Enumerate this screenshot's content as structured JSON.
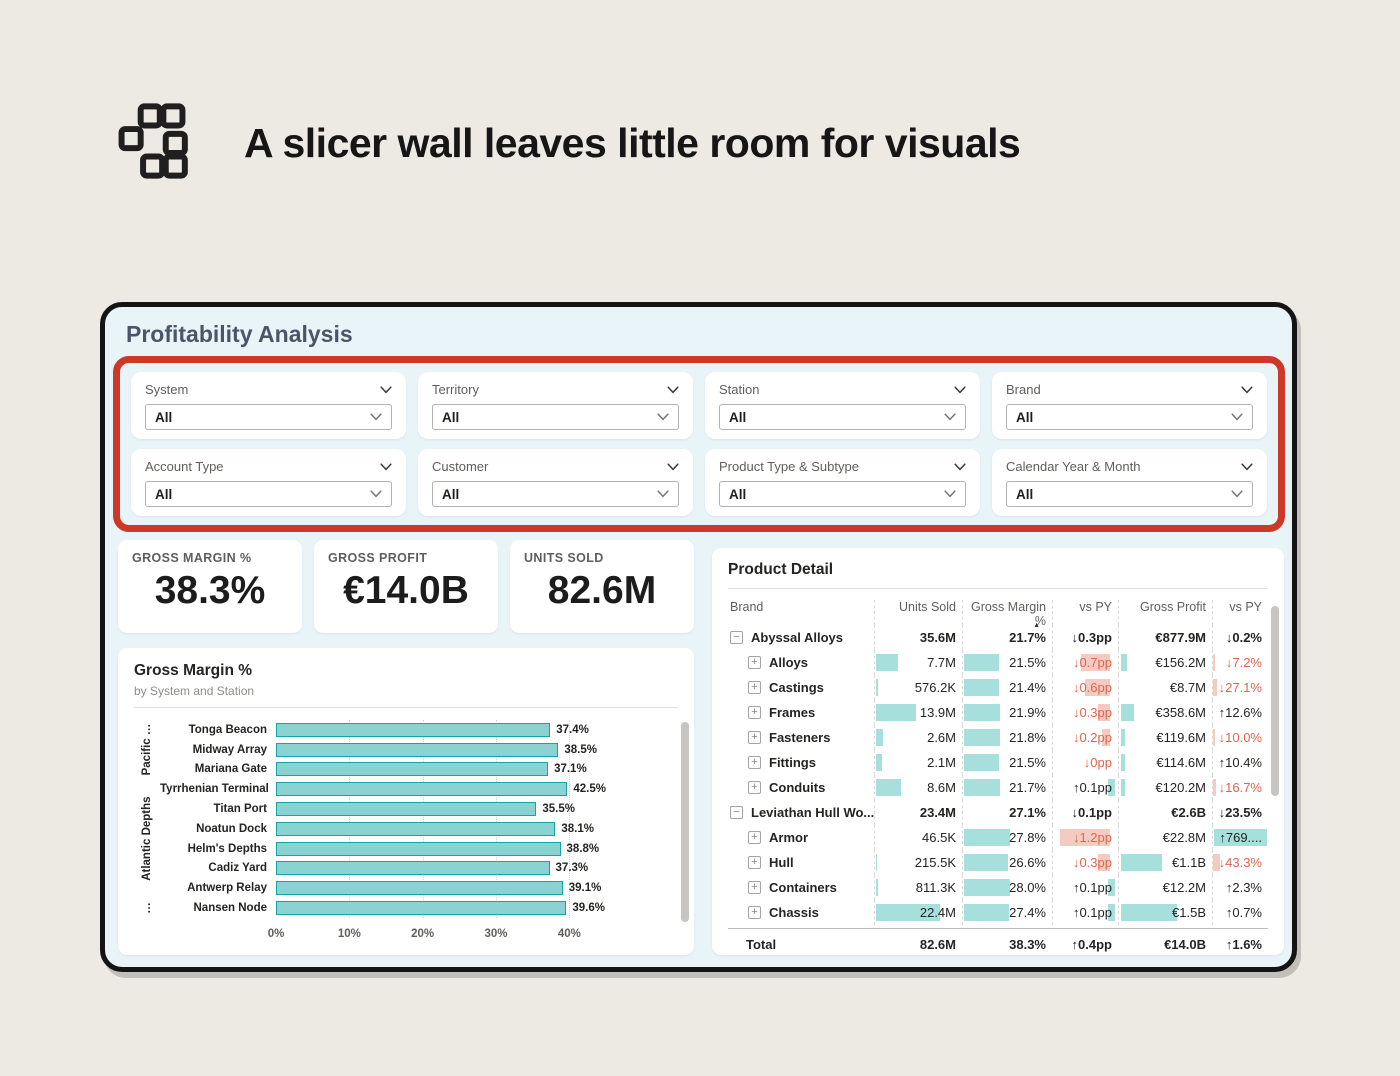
{
  "colors": {
    "page_bg": "#EDE9E3",
    "panel_bg": "#E9F4F9",
    "panel_border": "#141414",
    "red_outline": "#CE3829",
    "bar_fill": "#8BD3D2",
    "bar_stroke": "#16A4A7",
    "tbar_teal": "#A6DFDB",
    "tbar_pink": "#F3CBC1",
    "neg_text": "#E0654A",
    "text_dark": "#252423",
    "text_gray": "#605E5C",
    "title_color": "#4A5568"
  },
  "header": {
    "title": "A slicer wall leaves little room for visuals",
    "icon": "blocks-grid-icon"
  },
  "dashboard": {
    "title": "Profitability Analysis",
    "slicers": [
      {
        "label": "System",
        "value": "All"
      },
      {
        "label": "Territory",
        "value": "All"
      },
      {
        "label": "Station",
        "value": "All"
      },
      {
        "label": "Brand",
        "value": "All"
      },
      {
        "label": "Account Type",
        "value": "All"
      },
      {
        "label": "Customer",
        "value": "All"
      },
      {
        "label": "Product Type & Subtype",
        "value": "All"
      },
      {
        "label": "Calendar Year & Month",
        "value": "All"
      }
    ],
    "kpis": [
      {
        "label": "GROSS MARGIN %",
        "value": "38.3%"
      },
      {
        "label": "GROSS PROFIT",
        "value": "€14.0B"
      },
      {
        "label": "UNITS SOLD",
        "value": "82.6M"
      }
    ],
    "chart_data": {
      "type": "bar",
      "title": "Gross Margin %",
      "subtitle": "by System and Station",
      "categories": [
        "Tonga Beacon",
        "Midway Array",
        "Mariana Gate",
        "Tyrrhenian Terminal",
        "Titan Port",
        "Noatun Dock",
        "Helm's Depths",
        "Cadiz Yard",
        "Antwerp Relay",
        "Nansen Node"
      ],
      "values": [
        37.4,
        38.5,
        37.1,
        42.5,
        35.5,
        38.1,
        38.8,
        37.3,
        39.1,
        39.6
      ],
      "station_groups": [
        {
          "label": "Pacific …",
          "span": 3
        },
        {
          "label": "Atlantic Depths",
          "span": 6
        },
        {
          "label": "…",
          "span": 1
        }
      ],
      "x_ticks": [
        0,
        10,
        20,
        30,
        40
      ],
      "xlim": [
        0,
        45
      ],
      "xlabel": "",
      "ylabel": "",
      "grid": "dotted-vertical"
    },
    "table": {
      "title": "Product Detail",
      "columns": [
        "Brand",
        "Units Sold",
        "Gross Margin %",
        "vs PY",
        "Gross Profit",
        "vs PY"
      ],
      "sort_column_index": 2,
      "rows": [
        {
          "type": "parent",
          "expander": "minus",
          "brand": "Abyssal Alloys",
          "units": "35.6M",
          "units_m": 35.6,
          "gm": "21.7%",
          "gm_v": 21.7,
          "pp": "↓0.3pp",
          "pp_v": -0.3,
          "pp_neg": true,
          "gp": "€877.9M",
          "gp_m": 877.9,
          "vspy": "↓0.2%",
          "vspy_v": -0.2,
          "vspy_neg": true
        },
        {
          "type": "child",
          "expander": "plus",
          "brand": "Alloys",
          "units": "7.7M",
          "units_m": 7.7,
          "gm": "21.5%",
          "gm_v": 21.5,
          "pp": "↓0.7pp",
          "pp_v": -0.7,
          "pp_neg": true,
          "gp": "€156.2M",
          "gp_m": 156.2,
          "vspy": "↓7.2%",
          "vspy_v": -7.2,
          "vspy_neg": true
        },
        {
          "type": "child",
          "expander": "plus",
          "brand": "Castings",
          "units": "576.2K",
          "units_m": 0.5762,
          "gm": "21.4%",
          "gm_v": 21.4,
          "pp": "↓0.6pp",
          "pp_v": -0.6,
          "pp_neg": true,
          "gp": "€8.7M",
          "gp_m": 8.7,
          "vspy": "↓27.1%",
          "vspy_v": -27.1,
          "vspy_neg": true
        },
        {
          "type": "child",
          "expander": "plus",
          "brand": "Frames",
          "units": "13.9M",
          "units_m": 13.9,
          "gm": "21.9%",
          "gm_v": 21.9,
          "pp": "↓0.3pp",
          "pp_v": -0.3,
          "pp_neg": true,
          "gp": "€358.6M",
          "gp_m": 358.6,
          "vspy": "↑12.6%",
          "vspy_v": 12.6,
          "vspy_neg": false
        },
        {
          "type": "child",
          "expander": "plus",
          "brand": "Fasteners",
          "units": "2.6M",
          "units_m": 2.6,
          "gm": "21.8%",
          "gm_v": 21.8,
          "pp": "↓0.2pp",
          "pp_v": -0.2,
          "pp_neg": true,
          "gp": "€119.6M",
          "gp_m": 119.6,
          "vspy": "↓10.0%",
          "vspy_v": -10.0,
          "vspy_neg": true
        },
        {
          "type": "child",
          "expander": "plus",
          "brand": "Fittings",
          "units": "2.1M",
          "units_m": 2.1,
          "gm": "21.5%",
          "gm_v": 21.5,
          "pp": "↓0pp",
          "pp_v": 0,
          "pp_neg": true,
          "gp": "€114.6M",
          "gp_m": 114.6,
          "vspy": "↑10.4%",
          "vspy_v": 10.4,
          "vspy_neg": false
        },
        {
          "type": "child",
          "expander": "plus",
          "brand": "Conduits",
          "units": "8.6M",
          "units_m": 8.6,
          "gm": "21.7%",
          "gm_v": 21.7,
          "pp": "↑0.1pp",
          "pp_v": 0.1,
          "pp_neg": false,
          "gp": "€120.2M",
          "gp_m": 120.2,
          "vspy": "↓16.7%",
          "vspy_v": -16.7,
          "vspy_neg": true
        },
        {
          "type": "parent",
          "expander": "minus",
          "brand": "Leviathan Hull Wo...",
          "units": "23.4M",
          "units_m": 23.4,
          "gm": "27.1%",
          "gm_v": 27.1,
          "pp": "↓0.1pp",
          "pp_v": -0.1,
          "pp_neg": true,
          "gp": "€2.6B",
          "gp_m": 2600,
          "vspy": "↓23.5%",
          "vspy_v": -23.5,
          "vspy_neg": true
        },
        {
          "type": "child",
          "expander": "plus",
          "brand": "Armor",
          "units": "46.5K",
          "units_m": 0.0465,
          "gm": "27.8%",
          "gm_v": 27.8,
          "pp": "↓1.2pp",
          "pp_v": -1.2,
          "pp_neg": true,
          "gp": "€22.8M",
          "gp_m": 22.8,
          "vspy": "↑769....",
          "vspy_v": 769.6,
          "vspy_neg": false
        },
        {
          "type": "child",
          "expander": "plus",
          "brand": "Hull",
          "units": "215.5K",
          "units_m": 0.2155,
          "gm": "26.6%",
          "gm_v": 26.6,
          "pp": "↓0.3pp",
          "pp_v": -0.3,
          "pp_neg": true,
          "gp": "€1.1B",
          "gp_m": 1100,
          "vspy": "↓43.3%",
          "vspy_v": -43.3,
          "vspy_neg": true
        },
        {
          "type": "child",
          "expander": "plus",
          "brand": "Containers",
          "units": "811.3K",
          "units_m": 0.8113,
          "gm": "28.0%",
          "gm_v": 28.0,
          "pp": "↑0.1pp",
          "pp_v": 0.1,
          "pp_neg": false,
          "gp": "€12.2M",
          "gp_m": 12.2,
          "vspy": "↑2.3%",
          "vspy_v": 2.3,
          "vspy_neg": false
        },
        {
          "type": "child",
          "expander": "plus",
          "brand": "Chassis",
          "units": "22.4M",
          "units_m": 22.4,
          "gm": "27.4%",
          "gm_v": 27.4,
          "pp": "↑0.1pp",
          "pp_v": 0.1,
          "pp_neg": false,
          "gp": "€1.5B",
          "gp_m": 1500,
          "vspy": "↑0.7%",
          "vspy_v": 0.7,
          "vspy_neg": false
        }
      ],
      "total": {
        "brand": "Total",
        "units": "82.6M",
        "gm": "38.3%",
        "pp": "↑0.4pp",
        "gp": "€14.0B",
        "vspy": "↑1.6%"
      }
    }
  }
}
